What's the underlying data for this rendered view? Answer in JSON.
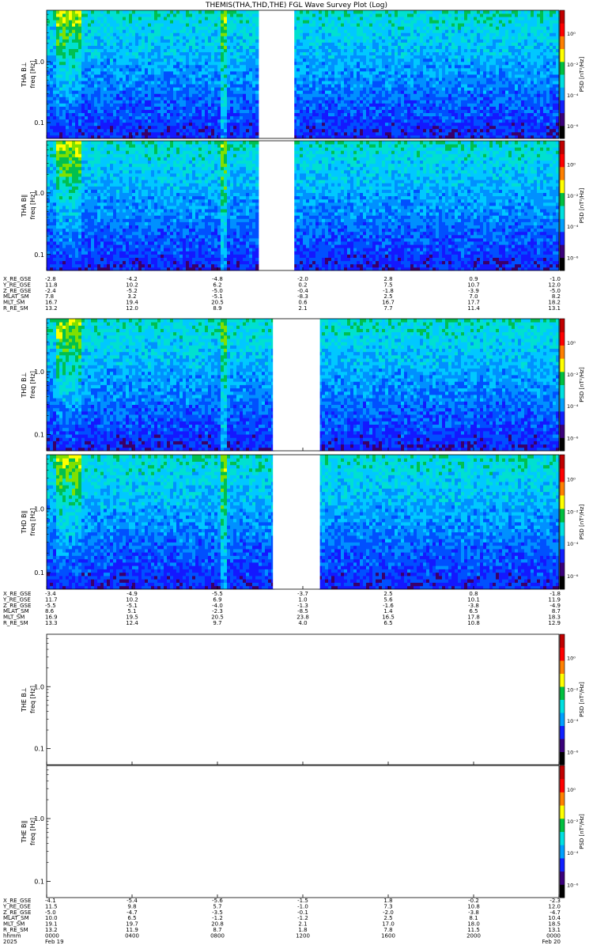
{
  "chart_data": {
    "type": "heatmap",
    "title": "THEMIS(THA,THD,THE) FGL Wave Survey Plot (Log)",
    "y_scale": "log",
    "y_ticks": [
      "1.0",
      "0.1"
    ],
    "colorbar": {
      "label": "PSD [nT²/Hz]",
      "ticks": [
        "10⁰",
        "10⁻²",
        "10⁻⁴",
        "10⁻⁶"
      ],
      "colormap": "rainbow",
      "colors": [
        "#000000",
        "#3a007a",
        "#1020ff",
        "#00a0ff",
        "#00e0e0",
        "#00c040",
        "#ffff00",
        "#ff8000",
        "#ff0000",
        "#c00000"
      ]
    },
    "panels": [
      {
        "ylabel": "THA B⊥",
        "yunit": "freq [Hz]",
        "probe": "THA",
        "has_data": true
      },
      {
        "ylabel": "THA B∥",
        "yunit": "freq [Hz]",
        "probe": "THA",
        "has_data": true
      },
      {
        "ylabel": "THD B⊥",
        "yunit": "freq [Hz]",
        "probe": "THD",
        "has_data": true
      },
      {
        "ylabel": "THD B∥",
        "yunit": "freq [Hz]",
        "probe": "THD",
        "has_data": true
      },
      {
        "ylabel": "THE B⊥",
        "yunit": "freq [Hz]",
        "probe": "THE",
        "has_data": false
      },
      {
        "ylabel": "THE B∥",
        "yunit": "freq [Hz]",
        "probe": "THE",
        "has_data": false
      }
    ],
    "data_gaps_hours": {
      "THA": [
        [
          10.0,
          11.6
        ]
      ],
      "THD": [
        [
          10.6,
          12.8
        ]
      ]
    },
    "x_hours": [
      0,
      4,
      8,
      12,
      16,
      20,
      24
    ],
    "ephemeris_blocks": [
      {
        "labels": [
          "X_RE_GSE",
          "Y_RE_GSE",
          "Z_RE_GSE",
          "MLAT_SM",
          "MLT_SM",
          "R_RE_SM"
        ],
        "rows": [
          [
            "-2.8",
            "-4.2",
            "-4.8",
            "-2.0",
            "2.8",
            "0.9",
            "-1.0"
          ],
          [
            "11.8",
            "10.2",
            "6.2",
            "0.2",
            "7.5",
            "10.7",
            "12.0"
          ],
          [
            "-2.4",
            "-5.2",
            "-5.0",
            "-0.4",
            "-1.8",
            "-3.9",
            "-5.0"
          ],
          [
            "7.8",
            "3.2",
            "-5.1",
            "-8.3",
            "2.5",
            "7.0",
            "8.2"
          ],
          [
            "16.7",
            "19.4",
            "20.5",
            "0.6",
            "16.7",
            "17.7",
            "18.2"
          ],
          [
            "13.2",
            "12.0",
            "8.9",
            "2.1",
            "7.7",
            "11.4",
            "13.1"
          ]
        ]
      },
      {
        "labels": [
          "X_RE_GSE",
          "Y_RE_GSE",
          "Z_RE_GSE",
          "MLAT_SM",
          "MLT_SM",
          "R_RE_SM"
        ],
        "rows": [
          [
            "-3.4",
            "-4.9",
            "-5.5",
            "-3.7",
            "2.5",
            "0.8",
            "-1.8"
          ],
          [
            "11.7",
            "10.2",
            "6.9",
            "1.0",
            "5.6",
            "10.1",
            "11.9"
          ],
          [
            "-5.5",
            "-5.1",
            "-4.0",
            "-1.3",
            "-1.6",
            "-3.8",
            "-4.9"
          ],
          [
            "8.6",
            "5.1",
            "-2.3",
            "-8.5",
            "1.4",
            "6.5",
            "8.7"
          ],
          [
            "16.9",
            "19.5",
            "20.5",
            "23.8",
            "16.5",
            "17.8",
            "18.3"
          ],
          [
            "13.3",
            "12.4",
            "9.7",
            "4.0",
            "6.5",
            "10.8",
            "12.9"
          ]
        ]
      },
      {
        "labels": [
          "X_RE_GSE",
          "Y_RE_GSE",
          "Z_RE_GSE",
          "MLAT_SM",
          "MLT_SM",
          "R_RE_SM",
          "hhmm",
          "2025"
        ],
        "rows": [
          [
            "-4.1",
            "-5.4",
            "-5.6",
            "-1.5",
            "1.8",
            "-0.2",
            "-2.3"
          ],
          [
            "11.5",
            "9.8",
            "5.7",
            "-1.0",
            "7.3",
            "10.8",
            "12.0"
          ],
          [
            "-5.0",
            "-4.7",
            "-3.5",
            "-0.1",
            "-2.0",
            "-3.8",
            "-4.7"
          ],
          [
            "10.0",
            "6.5",
            "-1.2",
            "-1.2",
            "2.5",
            "8.1",
            "10.4"
          ],
          [
            "19.1",
            "19.7",
            "20.8",
            "2.1",
            "17.0",
            "18.0",
            "18.5"
          ],
          [
            "13.2",
            "11.9",
            "8.7",
            "1.8",
            "7.8",
            "11.5",
            "13.1"
          ],
          [
            "0000",
            "0400",
            "0800",
            "1200",
            "1600",
            "2000",
            "0000"
          ],
          [
            "Feb 19",
            "",
            "",
            "",
            "",
            "",
            "Feb 20"
          ]
        ]
      }
    ]
  }
}
